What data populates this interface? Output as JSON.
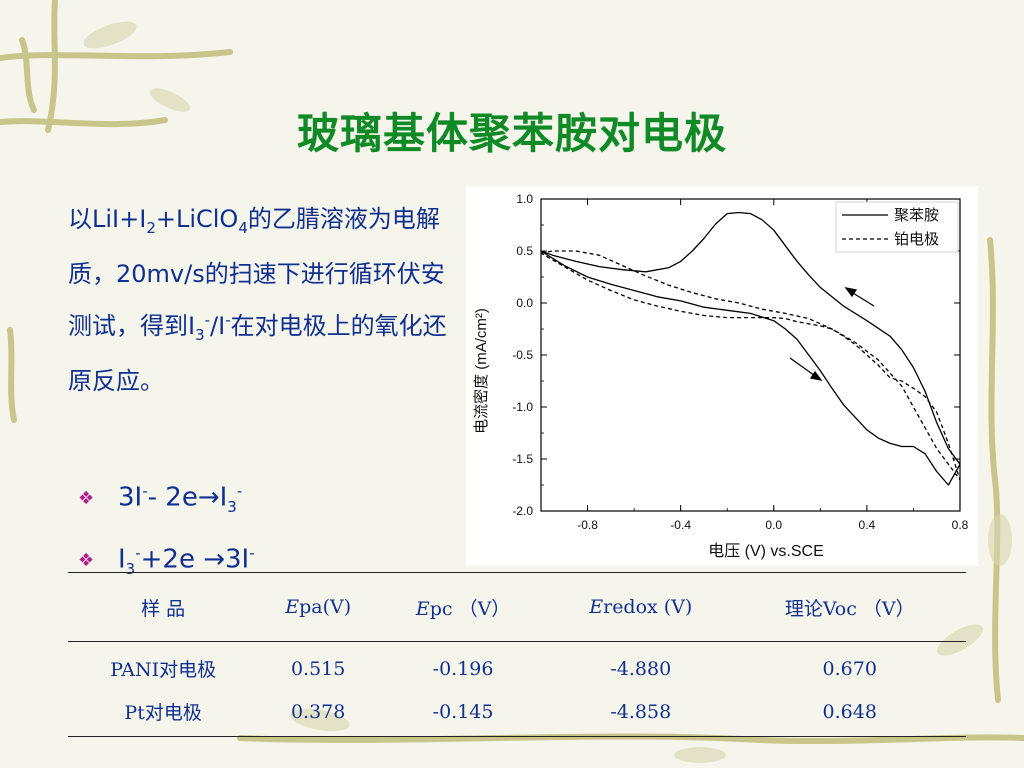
{
  "slide": {
    "title": "玻璃基体聚苯胺对电极",
    "paragraph": {
      "t1": "以LiI+I",
      "s1": "2",
      "t2": "+LiClO",
      "s2": "4",
      "t3": "的乙腈溶液为电解质，20mv/s的扫速下进行循环伏安测试，得到I",
      "s3": "3",
      "sp1": "-",
      "t4": "/I",
      "sp2": "-",
      "t5": "在对电极上的氧化还原反应。"
    },
    "bullets": [
      {
        "a": "3I",
        "sup1": "-",
        "b": "- 2e→I",
        "sub": "3",
        "sup2": "-"
      },
      {
        "a": "I",
        "sub": "3",
        "sup1": "-",
        "b": "+2e →3I",
        "sup2": "-"
      }
    ]
  },
  "chart_data": {
    "type": "line",
    "xlabel": "电压 (V) vs.SCE",
    "ylabel": "电流密度 (mA/cm²)",
    "xlim": [
      -1.0,
      0.8
    ],
    "ylim": [
      -2.0,
      1.0
    ],
    "x_ticks": [
      "-0.8",
      "-0.4",
      "0.0",
      "0.4",
      "0.8"
    ],
    "y_ticks": [
      "1.0",
      "0.5",
      "0.0",
      "-0.5",
      "-1.0",
      "-1.5",
      "-2.0"
    ],
    "legend_position": "top-right",
    "series": [
      {
        "name": "聚苯胺",
        "style": "solid",
        "x": [
          -1.0,
          -0.95,
          -0.85,
          -0.75,
          -0.65,
          -0.55,
          -0.45,
          -0.4,
          -0.35,
          -0.3,
          -0.25,
          -0.2,
          -0.15,
          -0.1,
          -0.05,
          0.0,
          0.05,
          0.1,
          0.15,
          0.2,
          0.3,
          0.4,
          0.5,
          0.55,
          0.6,
          0.65,
          0.7,
          0.75,
          0.8,
          0.75,
          0.7,
          0.65,
          0.6,
          0.55,
          0.5,
          0.45,
          0.4,
          0.35,
          0.3,
          0.25,
          0.2,
          0.15,
          0.1,
          0.05,
          0.0,
          -0.1,
          -0.2,
          -0.3,
          -0.4,
          -0.5,
          -0.6,
          -0.7,
          -0.8,
          -0.9,
          -1.0
        ],
        "y": [
          0.5,
          0.46,
          0.4,
          0.35,
          0.32,
          0.3,
          0.34,
          0.4,
          0.5,
          0.62,
          0.76,
          0.86,
          0.87,
          0.86,
          0.8,
          0.7,
          0.55,
          0.4,
          0.27,
          0.15,
          -0.03,
          -0.17,
          -0.32,
          -0.45,
          -0.62,
          -0.85,
          -1.15,
          -1.4,
          -1.55,
          -1.75,
          -1.62,
          -1.45,
          -1.38,
          -1.38,
          -1.35,
          -1.3,
          -1.22,
          -1.1,
          -0.98,
          -0.82,
          -0.65,
          -0.5,
          -0.35,
          -0.25,
          -0.17,
          -0.1,
          -0.07,
          -0.04,
          0.02,
          0.06,
          0.12,
          0.18,
          0.25,
          0.36,
          0.5
        ]
      },
      {
        "name": "铂电极",
        "style": "dashed",
        "x": [
          -1.0,
          -0.95,
          -0.85,
          -0.75,
          -0.65,
          -0.55,
          -0.45,
          -0.35,
          -0.25,
          -0.15,
          -0.05,
          0.05,
          0.15,
          0.25,
          0.35,
          0.45,
          0.55,
          0.6,
          0.65,
          0.7,
          0.75,
          0.8,
          0.75,
          0.7,
          0.65,
          0.6,
          0.55,
          0.5,
          0.45,
          0.4,
          0.35,
          0.3,
          0.25,
          0.2,
          0.15,
          0.1,
          0.05,
          0.0,
          -0.1,
          -0.2,
          -0.3,
          -0.4,
          -0.5,
          -0.6,
          -0.7,
          -0.8,
          -0.9,
          -1.0
        ],
        "y": [
          0.48,
          0.5,
          0.5,
          0.46,
          0.36,
          0.26,
          0.17,
          0.1,
          0.04,
          0.0,
          -0.06,
          -0.1,
          -0.15,
          -0.25,
          -0.38,
          -0.55,
          -0.8,
          -1.0,
          -1.2,
          -1.4,
          -1.55,
          -1.7,
          -1.35,
          -1.05,
          -0.9,
          -0.82,
          -0.75,
          -0.72,
          -0.6,
          -0.5,
          -0.4,
          -0.32,
          -0.25,
          -0.22,
          -0.2,
          -0.18,
          -0.15,
          -0.14,
          -0.14,
          -0.14,
          -0.12,
          -0.08,
          -0.03,
          0.03,
          0.12,
          0.22,
          0.35,
          0.48
        ]
      }
    ]
  },
  "table": {
    "headers": {
      "h0": "样 品",
      "h1a": "E",
      "h1b": "pa(V)",
      "h2a": "E",
      "h2b": "pc （V）",
      "h3a": "E",
      "h3b": "redox (V)",
      "h4": "理论Voc （V）"
    },
    "rows": [
      [
        "PANI对电极",
        "0.515",
        "-0.196",
        "-4.880",
        "0.670"
      ],
      [
        "Pt对电极",
        "0.378",
        "-0.145",
        "-4.858",
        "0.648"
      ]
    ]
  }
}
